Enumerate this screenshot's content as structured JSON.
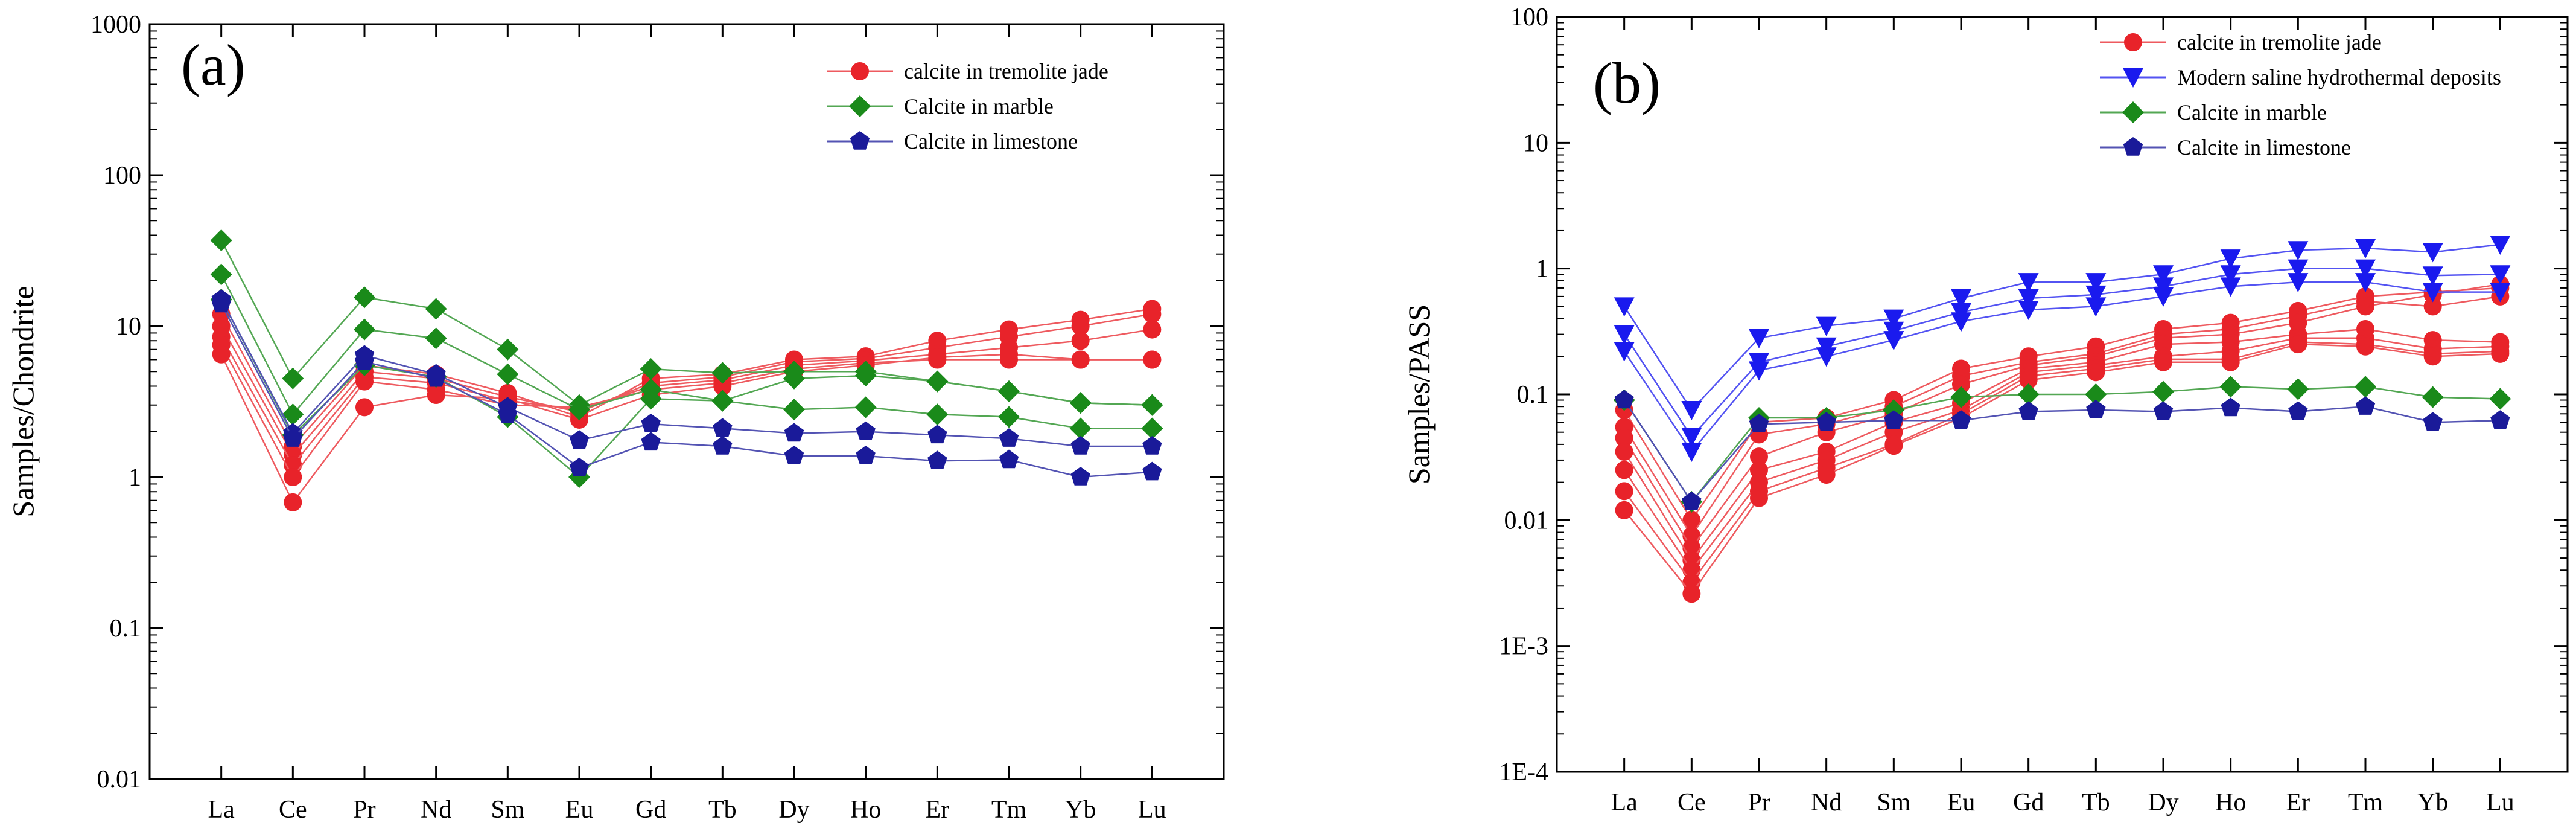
{
  "chart_data": [
    {
      "type": "line",
      "panel_label": "(a)",
      "yscale": "log",
      "ylabel": "Samples/Chondrite",
      "xlabel": "",
      "ylim": [
        0.01,
        1000
      ],
      "yticks": [
        "0.01",
        "0.1",
        "1",
        "10",
        "100",
        "1000"
      ],
      "categories": [
        "La",
        "Ce",
        "Pr",
        "Nd",
        "Sm",
        "Eu",
        "Gd",
        "Tb",
        "Dy",
        "Ho",
        "Er",
        "Tm",
        "Yb",
        "Lu"
      ],
      "legend": [
        {
          "name": "calcite in tremolite jade",
          "color": "#e8232a",
          "marker": "circle"
        },
        {
          "name": "Calcite in marble",
          "color": "#1a8a1a",
          "marker": "diamond"
        },
        {
          "name": "Calcite in limestone",
          "color": "#1a1a99",
          "marker": "pentagon"
        }
      ],
      "series": [
        {
          "name": "calcite in tremolite jade",
          "color": "#e8232a",
          "marker": "circle",
          "values": [
            12,
            1.6,
            5.5,
            4.8,
            3.6,
            2.5,
            4.5,
            4.8,
            6.0,
            6.3,
            8.0,
            9.5,
            11,
            13
          ]
        },
        {
          "name": "calcite in tremolite jade",
          "color": "#e8232a",
          "marker": "circle",
          "values": [
            10,
            1.4,
            5.0,
            4.5,
            3.4,
            2.7,
            4.2,
            4.6,
            5.8,
            6.1,
            7.2,
            8.5,
            10,
            12
          ]
        },
        {
          "name": "calcite in tremolite jade",
          "color": "#e8232a",
          "marker": "circle",
          "values": [
            8.5,
            1.2,
            4.6,
            4.2,
            3.2,
            2.8,
            4.0,
            4.4,
            5.5,
            5.9,
            6.5,
            7.2,
            8.0,
            9.5
          ]
        },
        {
          "name": "calcite in tremolite jade",
          "color": "#e8232a",
          "marker": "circle",
          "values": [
            7.5,
            1.0,
            4.3,
            3.8,
            3.0,
            2.9,
            3.8,
            4.2,
            5.2,
            5.7,
            6.0,
            6.0,
            6.0,
            6.0
          ]
        },
        {
          "name": "calcite in tremolite jade",
          "color": "#e8232a",
          "marker": "circle",
          "values": [
            6.5,
            0.68,
            2.9,
            3.5,
            3.3,
            2.4,
            3.5,
            4.0,
            5.0,
            5.5,
            6.2,
            6.5,
            6.0,
            6.0
          ]
        },
        {
          "name": "Calcite in marble",
          "color": "#1a8a1a",
          "marker": "diamond",
          "values": [
            37,
            4.5,
            15.5,
            13,
            7.0,
            3.0,
            5.2,
            4.9,
            5.0,
            5.0,
            4.3,
            3.7,
            3.1,
            3.0
          ]
        },
        {
          "name": "Calcite in marble",
          "color": "#1a8a1a",
          "marker": "diamond",
          "values": [
            22,
            2.6,
            9.5,
            8.3,
            4.8,
            2.8,
            3.8,
            3.2,
            2.8,
            2.9,
            2.6,
            2.5,
            2.1,
            2.1
          ]
        },
        {
          "name": "Calcite in marble",
          "color": "#1a8a1a",
          "marker": "diamond",
          "values": [
            15,
            1.9,
            5.5,
            4.6,
            2.5,
            1.0,
            3.3,
            3.2,
            4.5,
            4.7,
            4.3,
            3.7,
            3.1,
            3.0
          ]
        },
        {
          "name": "Calcite in limestone",
          "color": "#1a1a99",
          "marker": "pentagon",
          "values": [
            15,
            1.95,
            6.4,
            4.8,
            2.9,
            1.75,
            2.25,
            2.1,
            1.95,
            2.0,
            1.9,
            1.8,
            1.6,
            1.6
          ]
        },
        {
          "name": "Calcite in limestone",
          "color": "#1a1a99",
          "marker": "pentagon",
          "values": [
            14,
            1.8,
            5.8,
            4.5,
            2.6,
            1.15,
            1.7,
            1.6,
            1.38,
            1.38,
            1.28,
            1.3,
            1.0,
            1.08
          ]
        }
      ]
    },
    {
      "type": "line",
      "panel_label": "(b)",
      "yscale": "log",
      "ylabel": "Samples/PASS",
      "xlabel": "",
      "ylim": [
        0.0001,
        100
      ],
      "yticks": [
        "1E-4",
        "1E-3",
        "0.01",
        "0.1",
        "1",
        "10",
        "100"
      ],
      "categories": [
        "La",
        "Ce",
        "Pr",
        "Nd",
        "Sm",
        "Eu",
        "Gd",
        "Tb",
        "Dy",
        "Ho",
        "Er",
        "Tm",
        "Yb",
        "Lu"
      ],
      "legend": [
        {
          "name": "calcite in tremolite jade",
          "color": "#e8232a",
          "marker": "circle"
        },
        {
          "name": "Modern saline hydrothermal deposits",
          "color": "#1a1aee",
          "marker": "triangle-down"
        },
        {
          "name": "Calcite in marble",
          "color": "#1a8a1a",
          "marker": "diamond"
        },
        {
          "name": "Calcite in limestone",
          "color": "#1a1a99",
          "marker": "pentagon"
        }
      ],
      "series": [
        {
          "name": "calcite in tremolite jade",
          "color": "#e8232a",
          "marker": "circle",
          "values": [
            0.075,
            0.01,
            0.06,
            0.065,
            0.09,
            0.16,
            0.2,
            0.24,
            0.33,
            0.37,
            0.46,
            0.6,
            0.65,
            0.7
          ]
        },
        {
          "name": "calcite in tremolite jade",
          "color": "#e8232a",
          "marker": "circle",
          "values": [
            0.055,
            0.0075,
            0.048,
            0.058,
            0.08,
            0.14,
            0.18,
            0.21,
            0.3,
            0.33,
            0.42,
            0.55,
            0.5,
            0.6
          ]
        },
        {
          "name": "calcite in tremolite jade",
          "color": "#e8232a",
          "marker": "circle",
          "values": [
            0.045,
            0.006,
            0.032,
            0.05,
            0.07,
            0.12,
            0.17,
            0.2,
            0.28,
            0.3,
            0.37,
            0.5,
            0.62,
            0.75
          ]
        },
        {
          "name": "calcite in tremolite jade",
          "color": "#e8232a",
          "marker": "circle",
          "values": [
            0.035,
            0.0048,
            0.025,
            0.035,
            0.06,
            0.085,
            0.16,
            0.18,
            0.25,
            0.26,
            0.3,
            0.33,
            0.27,
            0.26
          ]
        },
        {
          "name": "calcite in tremolite jade",
          "color": "#e8232a",
          "marker": "circle",
          "values": [
            0.025,
            0.004,
            0.02,
            0.03,
            0.05,
            0.075,
            0.15,
            0.17,
            0.2,
            0.22,
            0.28,
            0.28,
            0.23,
            0.24
          ]
        },
        {
          "name": "calcite in tremolite jade",
          "color": "#e8232a",
          "marker": "circle",
          "values": [
            0.017,
            0.0032,
            0.017,
            0.026,
            0.04,
            0.07,
            0.14,
            0.16,
            0.19,
            0.19,
            0.26,
            0.25,
            0.21,
            0.22
          ]
        },
        {
          "name": "calcite in tremolite jade",
          "color": "#e8232a",
          "marker": "circle",
          "values": [
            0.012,
            0.0026,
            0.015,
            0.023,
            0.039,
            0.065,
            0.13,
            0.15,
            0.18,
            0.18,
            0.25,
            0.24,
            0.2,
            0.21
          ]
        },
        {
          "name": "Modern saline hydrothermal deposits",
          "color": "#1a1aee",
          "marker": "triangle-down",
          "values": [
            0.5,
            0.075,
            0.28,
            0.35,
            0.4,
            0.58,
            0.78,
            0.78,
            0.9,
            1.2,
            1.4,
            1.45,
            1.35,
            1.55
          ]
        },
        {
          "name": "Modern saline hydrothermal deposits",
          "color": "#1a1aee",
          "marker": "triangle-down",
          "values": [
            0.3,
            0.046,
            0.18,
            0.24,
            0.32,
            0.45,
            0.58,
            0.62,
            0.72,
            0.9,
            1.0,
            1.0,
            0.88,
            0.9
          ]
        },
        {
          "name": "Modern saline hydrothermal deposits",
          "color": "#1a1aee",
          "marker": "triangle-down",
          "values": [
            0.22,
            0.035,
            0.155,
            0.2,
            0.27,
            0.38,
            0.47,
            0.5,
            0.6,
            0.72,
            0.78,
            0.78,
            0.65,
            0.65
          ]
        },
        {
          "name": "Calcite in marble",
          "color": "#1a8a1a",
          "marker": "diamond",
          "values": [
            0.09,
            0.014,
            0.065,
            0.065,
            0.075,
            0.095,
            0.1,
            0.1,
            0.105,
            0.115,
            0.11,
            0.115,
            0.095,
            0.092
          ]
        },
        {
          "name": "Calcite in limestone",
          "color": "#1a1a99",
          "marker": "pentagon",
          "values": [
            0.09,
            0.014,
            0.058,
            0.06,
            0.062,
            0.062,
            0.073,
            0.075,
            0.073,
            0.078,
            0.073,
            0.08,
            0.06,
            0.062
          ]
        }
      ]
    }
  ]
}
